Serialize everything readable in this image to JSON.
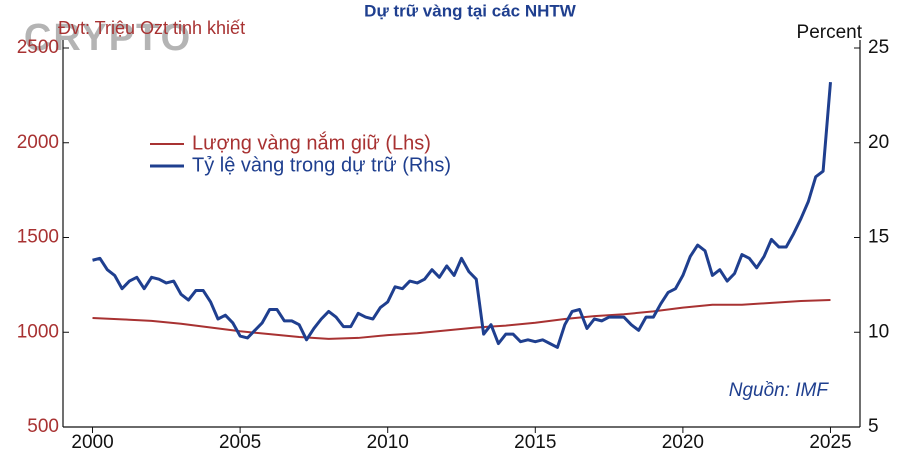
{
  "chart_data": {
    "type": "line",
    "title": "Dự trữ vàng tại các NHTW",
    "watermark": "CRYPTO",
    "y_label": "Đvt: Triệu Ozt tinh khiết",
    "y2_label": "Percent",
    "source": "Nguồn: IMF",
    "xlim": [
      1999,
      2026
    ],
    "xticks": [
      2000,
      2005,
      2010,
      2015,
      2020,
      2025
    ],
    "ylim": [
      500,
      2500
    ],
    "yticks": [
      500,
      1000,
      1500,
      2000,
      2500
    ],
    "y2lim": [
      5,
      25
    ],
    "y2ticks": [
      5,
      10,
      15,
      20,
      25
    ],
    "series": [
      {
        "name": "Lượng vàng nắm giữ (Lhs)",
        "color": "#a83232",
        "x": [
          2000,
          2001,
          2002,
          2003,
          2004,
          2005,
          2006,
          2007,
          2008,
          2009,
          2010,
          2011,
          2012,
          2013,
          2014,
          2015,
          2016,
          2017,
          2018,
          2019,
          2020,
          2021,
          2022,
          2023,
          2024,
          2025
        ],
        "values": [
          1075,
          1068,
          1060,
          1045,
          1025,
          1005,
          990,
          975,
          965,
          970,
          985,
          995,
          1010,
          1025,
          1035,
          1050,
          1070,
          1085,
          1095,
          1110,
          1130,
          1145,
          1145,
          1155,
          1165,
          1170
        ]
      },
      {
        "name": "Tỷ lệ vàng trong dự trữ (Rhs)",
        "color": "#1f3f8f",
        "axis": "y2",
        "x": [
          2000,
          2000.25,
          2000.5,
          2000.75,
          2001,
          2001.25,
          2001.5,
          2001.75,
          2002,
          2002.25,
          2002.5,
          2002.75,
          2003,
          2003.25,
          2003.5,
          2003.75,
          2004,
          2004.25,
          2004.5,
          2004.75,
          2005,
          2005.25,
          2005.5,
          2005.75,
          2006,
          2006.25,
          2006.5,
          2006.75,
          2007,
          2007.25,
          2007.5,
          2007.75,
          2008,
          2008.25,
          2008.5,
          2008.75,
          2009,
          2009.25,
          2009.5,
          2009.75,
          2010,
          2010.25,
          2010.5,
          2010.75,
          2011,
          2011.25,
          2011.5,
          2011.75,
          2012,
          2012.25,
          2012.5,
          2012.75,
          2013,
          2013.25,
          2013.5,
          2013.75,
          2014,
          2014.25,
          2014.5,
          2014.75,
          2015,
          2015.25,
          2015.5,
          2015.75,
          2016,
          2016.25,
          2016.5,
          2016.75,
          2017,
          2017.25,
          2017.5,
          2017.75,
          2018,
          2018.25,
          2018.5,
          2018.75,
          2019,
          2019.25,
          2019.5,
          2019.75,
          2020,
          2020.25,
          2020.5,
          2020.75,
          2021,
          2021.25,
          2021.5,
          2021.75,
          2022,
          2022.25,
          2022.5,
          2022.75,
          2023,
          2023.25,
          2023.5,
          2023.75,
          2024,
          2024.25,
          2024.5,
          2024.75,
          2025
        ],
        "values": [
          13.8,
          13.9,
          13.3,
          13.0,
          12.3,
          12.7,
          12.9,
          12.3,
          12.9,
          12.8,
          12.6,
          12.7,
          12.0,
          11.7,
          12.2,
          12.2,
          11.6,
          10.7,
          10.9,
          10.5,
          9.8,
          9.7,
          10.1,
          10.5,
          11.2,
          11.2,
          10.6,
          10.6,
          10.4,
          9.6,
          10.2,
          10.7,
          11.1,
          10.8,
          10.3,
          10.3,
          11.0,
          10.8,
          10.7,
          11.3,
          11.6,
          12.4,
          12.3,
          12.7,
          12.6,
          12.8,
          13.3,
          12.9,
          13.5,
          13.0,
          13.9,
          13.2,
          12.8,
          9.9,
          10.4,
          9.4,
          9.9,
          9.9,
          9.5,
          9.6,
          9.5,
          9.6,
          9.4,
          9.2,
          10.4,
          11.1,
          11.2,
          10.2,
          10.7,
          10.6,
          10.8,
          10.8,
          10.8,
          10.4,
          10.1,
          10.8,
          10.8,
          11.5,
          12.1,
          12.3,
          13.0,
          14.0,
          14.6,
          14.3,
          13.0,
          13.3,
          12.7,
          13.1,
          14.1,
          13.9,
          13.4,
          14.0,
          14.9,
          14.5,
          14.5,
          15.2,
          16.0,
          16.9,
          18.2,
          18.5,
          23.2
        ]
      }
    ]
  }
}
